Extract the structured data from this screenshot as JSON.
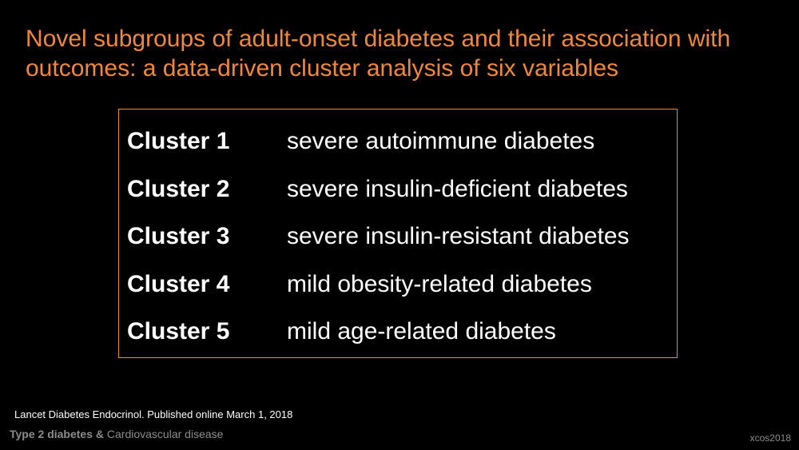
{
  "slide": {
    "title": "Novel subgroups of adult-onset diabetes and their association with outcomes: a data-driven cluster analysis of six variables",
    "clusters": [
      {
        "name": "Cluster 1",
        "description": "severe autoimmune diabetes"
      },
      {
        "name": "Cluster 2",
        "description": "severe insulin-deficient diabetes"
      },
      {
        "name": "Cluster 3",
        "description": "severe insulin-resistant diabetes"
      },
      {
        "name": "Cluster 4",
        "description": "mild obesity-related diabetes"
      },
      {
        "name": "Cluster 5",
        "description": "mild age-related diabetes"
      }
    ],
    "citation": "Lancet Diabetes Endocrinol. Published online March 1, 2018",
    "footer": {
      "topic_bold": "Type 2 diabetes &",
      "topic_rest": "Cardiovascular disease"
    },
    "watermark": "xcos2018"
  },
  "colors": {
    "accent": "#f0883c",
    "background": "#000000",
    "text": "#ffffff",
    "muted": "#8c8c8c"
  }
}
